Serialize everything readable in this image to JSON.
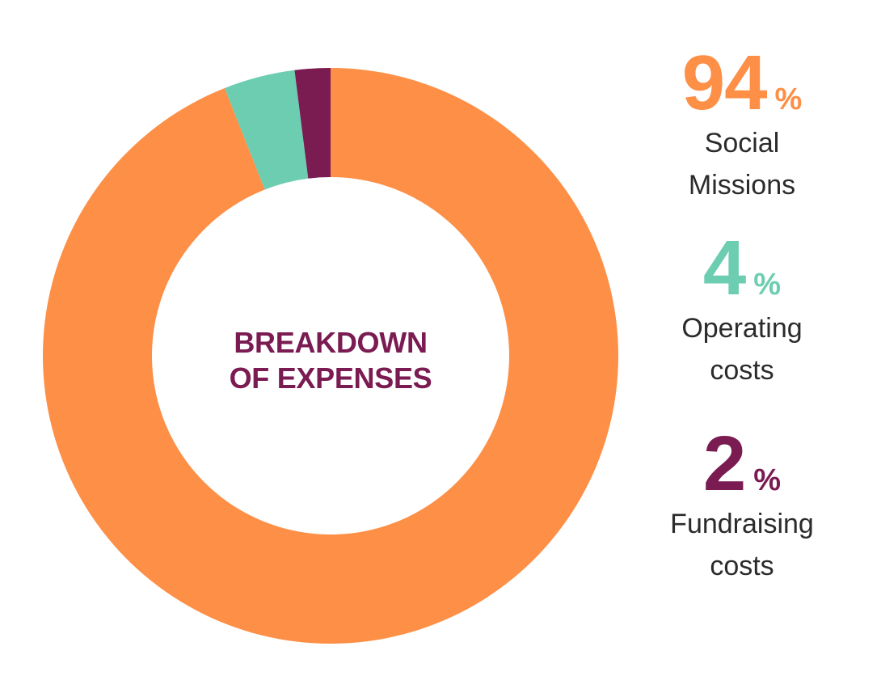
{
  "chart_data": {
    "type": "pie",
    "donut": true,
    "title": "BREAKDOWN OF EXPENSES",
    "title_lines": [
      "BREAKDOWN",
      "OF EXPENSES"
    ],
    "title_color": "#7a1b52",
    "start_angle_deg": 0,
    "direction": "clockwise",
    "slices": [
      {
        "label_lines": [
          "Social",
          "Missions"
        ],
        "value": 94,
        "display_value": "94",
        "unit": "%",
        "color": "#fd8f46"
      },
      {
        "label_lines": [
          "Operating",
          "costs"
        ],
        "value": 4,
        "display_value": "4",
        "unit": "%",
        "color": "#6dcdb0"
      },
      {
        "label_lines": [
          "Fundraising",
          "costs"
        ],
        "value": 2,
        "display_value": "2",
        "unit": "%",
        "color": "#7a1b52"
      }
    ]
  }
}
